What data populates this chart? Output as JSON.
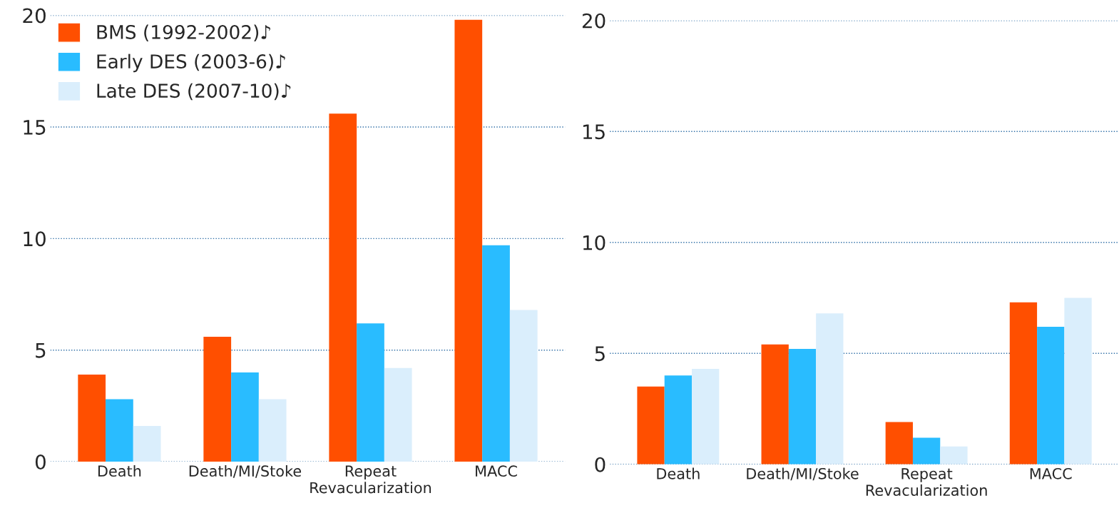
{
  "chart_data": [
    {
      "type": "bar",
      "categories": [
        "Death",
        "Death/MI/Stoke",
        "Repeat Revacularization",
        "MACC"
      ],
      "ylim": [
        0,
        20
      ],
      "yticks": [
        0,
        5,
        10,
        15,
        20
      ],
      "grid": "y",
      "legend": "top left",
      "series": [
        {
          "name": "BMS (1992-2002)♪",
          "color": "#ff4f00",
          "values": [
            3.9,
            5.6,
            15.6,
            19.8
          ]
        },
        {
          "name": "Early DES (2003-6)♪",
          "color": "#29bcff",
          "values": [
            2.8,
            4.0,
            6.2,
            9.7
          ]
        },
        {
          "name": "Late DES (2007-10)♪",
          "color": "#daeefc",
          "values": [
            1.6,
            2.8,
            4.2,
            6.8
          ]
        }
      ]
    },
    {
      "type": "bar",
      "categories": [
        "Death",
        "Death/MI/Stoke",
        "Repeat Revacularization",
        "MACC"
      ],
      "ylim": [
        0,
        20
      ],
      "yticks": [
        0,
        5,
        10,
        15,
        20
      ],
      "grid": "y",
      "series": [
        {
          "color": "#ff4f00",
          "values": [
            3.5,
            5.4,
            1.9,
            7.3
          ]
        },
        {
          "color": "#29bcff",
          "values": [
            4.0,
            5.2,
            1.2,
            6.2
          ]
        },
        {
          "color": "#daeefc",
          "values": [
            4.3,
            6.8,
            0.8,
            7.5
          ]
        }
      ]
    }
  ]
}
